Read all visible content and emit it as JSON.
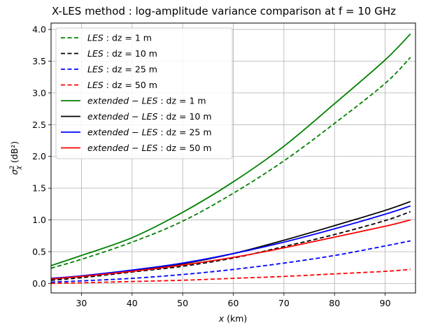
{
  "chart_data": {
    "type": "line",
    "title": "X-LES method : log-amplitude variance comparison at f = 10 GHz",
    "xlabel_var": "x",
    "xlabel_unit": "(km)",
    "ylabel_var": "σ",
    "ylabel_sup": "2",
    "ylabel_sub": "χ",
    "ylabel_unit": "(dB²)",
    "xlim": [
      24,
      96
    ],
    "ylim": [
      -0.15,
      4.1
    ],
    "xticks": [
      30,
      40,
      50,
      60,
      70,
      80,
      90
    ],
    "xtick_labels": [
      "30",
      "40",
      "50",
      "60",
      "70",
      "80",
      "90"
    ],
    "yticks": [
      0.0,
      0.5,
      1.0,
      1.5,
      2.0,
      2.5,
      3.0,
      3.5,
      4.0
    ],
    "ytick_labels": [
      "0.0",
      "0.5",
      "1.0",
      "1.5",
      "2.0",
      "2.5",
      "3.0",
      "3.5",
      "4.0"
    ],
    "grid": true,
    "legend_position": "top-left",
    "x": [
      24,
      30,
      40,
      50,
      60,
      70,
      80,
      90,
      95
    ],
    "series": [
      {
        "name_italic": "LES",
        "name_rest": " : dz = 1 m",
        "style": "dashed",
        "color": "#008000",
        "values": [
          0.24,
          0.38,
          0.65,
          0.98,
          1.42,
          1.93,
          2.52,
          3.15,
          3.56
        ]
      },
      {
        "name_italic": "LES",
        "name_rest": " : dz = 10 m",
        "style": "dashed",
        "color": "#000000",
        "values": [
          0.05,
          0.09,
          0.18,
          0.27,
          0.4,
          0.58,
          0.77,
          0.99,
          1.13
        ]
      },
      {
        "name_italic": "LES",
        "name_rest": " : dz = 25 m",
        "style": "dashed",
        "color": "#0000ff",
        "values": [
          0.02,
          0.04,
          0.08,
          0.14,
          0.22,
          0.32,
          0.44,
          0.59,
          0.67
        ]
      },
      {
        "name_italic": "LES",
        "name_rest": " : dz = 50 m",
        "style": "dashed",
        "color": "#ff0000",
        "values": [
          0.0,
          0.01,
          0.03,
          0.05,
          0.08,
          0.11,
          0.15,
          0.19,
          0.22
        ]
      },
      {
        "name_italic": "extended − LES",
        "name_rest": " : dz = 1 m",
        "style": "solid",
        "color": "#008000",
        "values": [
          0.28,
          0.44,
          0.72,
          1.12,
          1.6,
          2.16,
          2.83,
          3.52,
          3.93
        ]
      },
      {
        "name_italic": "extended − LES",
        "name_rest": " : dz = 10 m",
        "style": "solid",
        "color": "#000000",
        "values": [
          0.07,
          0.11,
          0.2,
          0.31,
          0.47,
          0.68,
          0.91,
          1.15,
          1.29
        ]
      },
      {
        "name_italic": "extended − LES",
        "name_rest": " : dz = 25 m",
        "style": "solid",
        "color": "#0000ff",
        "values": [
          0.08,
          0.12,
          0.21,
          0.32,
          0.47,
          0.65,
          0.86,
          1.09,
          1.22
        ]
      },
      {
        "name_italic": "extended − LES",
        "name_rest": " : dz = 50 m",
        "style": "solid",
        "color": "#ff0000",
        "values": [
          0.07,
          0.11,
          0.19,
          0.29,
          0.41,
          0.56,
          0.73,
          0.9,
          1.0
        ]
      }
    ]
  }
}
